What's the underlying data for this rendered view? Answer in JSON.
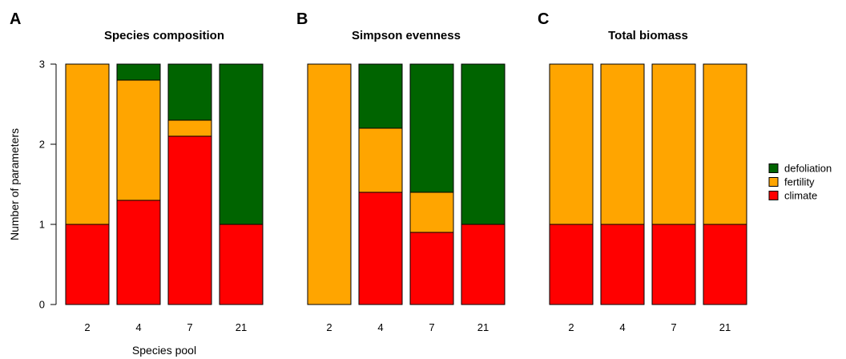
{
  "colors": {
    "defoliation": "#006400",
    "fertility": "#FFA500",
    "climate": "#FF0000"
  },
  "legend": {
    "placement": "right",
    "entries": [
      {
        "key": "defoliation",
        "label": "defoliation"
      },
      {
        "key": "fertility",
        "label": "fertility"
      },
      {
        "key": "climate",
        "label": "climate"
      }
    ]
  },
  "chart_data": [
    {
      "type": "bar",
      "stacked": true,
      "letter": "A",
      "title": "Species composition",
      "xlabel": "Species pool",
      "ylabel": "Number of parameters",
      "ylim": [
        0,
        3
      ],
      "yticks": [
        0,
        1,
        2,
        3
      ],
      "categories": [
        "2",
        "4",
        "7",
        "21"
      ],
      "series": [
        {
          "name": "climate",
          "values": [
            1.0,
            1.3,
            2.1,
            1.0
          ]
        },
        {
          "name": "fertility",
          "values": [
            2.0,
            1.5,
            0.2,
            0.0
          ]
        },
        {
          "name": "defoliation",
          "values": [
            0.0,
            0.2,
            0.7,
            2.0
          ]
        }
      ]
    },
    {
      "type": "bar",
      "stacked": true,
      "letter": "B",
      "title": "Simpson evenness",
      "xlabel": "",
      "ylabel": "",
      "ylim": [
        0,
        3
      ],
      "categories": [
        "2",
        "4",
        "7",
        "21"
      ],
      "series": [
        {
          "name": "climate",
          "values": [
            0.0,
            1.4,
            0.9,
            1.0
          ]
        },
        {
          "name": "fertility",
          "values": [
            3.0,
            0.8,
            0.5,
            0.0
          ]
        },
        {
          "name": "defoliation",
          "values": [
            0.0,
            0.8,
            1.6,
            2.0
          ]
        }
      ]
    },
    {
      "type": "bar",
      "stacked": true,
      "letter": "C",
      "title": "Total biomass",
      "xlabel": "",
      "ylabel": "",
      "ylim": [
        0,
        3
      ],
      "categories": [
        "2",
        "4",
        "7",
        "21"
      ],
      "series": [
        {
          "name": "climate",
          "values": [
            1.0,
            1.0,
            1.0,
            1.0
          ]
        },
        {
          "name": "fertility",
          "values": [
            2.0,
            2.0,
            2.0,
            2.0
          ]
        },
        {
          "name": "defoliation",
          "values": [
            0.0,
            0.0,
            0.0,
            0.0
          ]
        }
      ]
    }
  ]
}
